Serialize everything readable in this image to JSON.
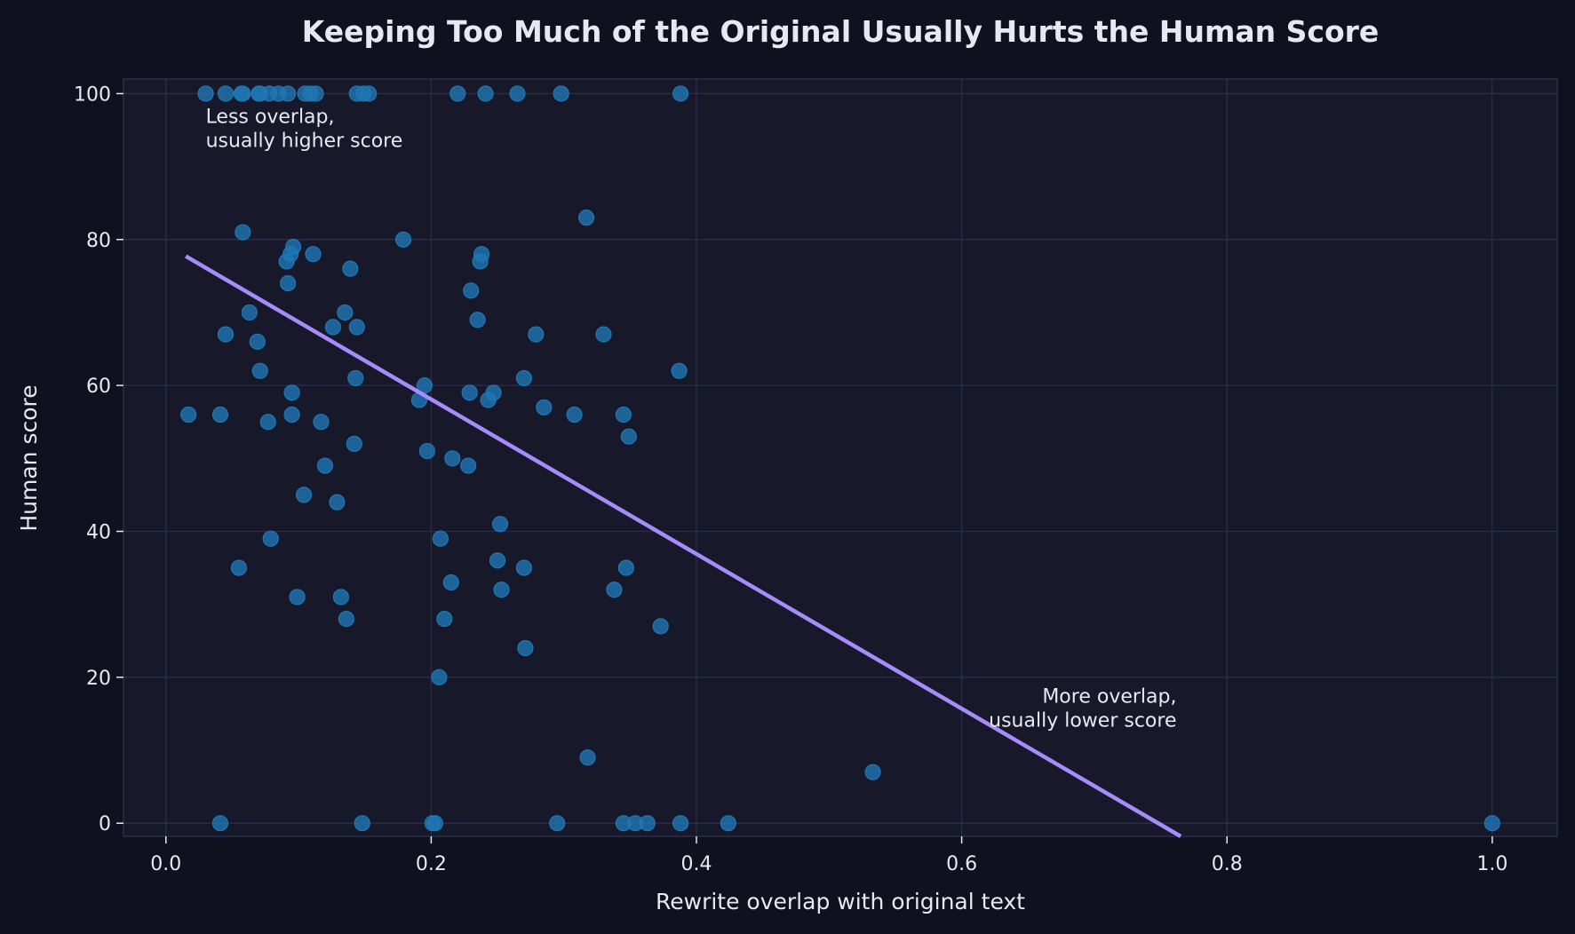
{
  "chart_data": {
    "type": "scatter",
    "title": "Keeping Too Much of the Original Usually Hurts the Human Score",
    "xlabel": "Rewrite overlap with original text",
    "ylabel": "Human score",
    "xlim": [
      -0.032,
      1.049
    ],
    "ylim": [
      -1.8,
      102
    ],
    "xticks": [
      "0.0",
      "0.2",
      "0.4",
      "0.6",
      "0.8",
      "1.0"
    ],
    "yticks": [
      "0",
      "20",
      "40",
      "60",
      "80",
      "100"
    ],
    "grid": true,
    "colors": {
      "background": "#0f111f",
      "plot_background": "#171829",
      "grid": "#2c2d4a",
      "points": "#1f77b4",
      "trend": "#a78bfa",
      "text": "#e8e8f0"
    },
    "annotations": [
      {
        "lines": [
          "Less overlap,",
          "usually higher score"
        ],
        "x": 0.03,
        "y": 96,
        "align": "left"
      },
      {
        "lines": [
          "More overlap,",
          "usually lower score"
        ],
        "x": 0.762,
        "y": 16.5,
        "align": "right"
      }
    ],
    "series": [
      {
        "points": [
          [
            0.03,
            100
          ],
          [
            0.045,
            100
          ],
          [
            0.057,
            100
          ],
          [
            0.058,
            100
          ],
          [
            0.07,
            100
          ],
          [
            0.071,
            100
          ],
          [
            0.078,
            100
          ],
          [
            0.085,
            100
          ],
          [
            0.092,
            100
          ],
          [
            0.105,
            100
          ],
          [
            0.109,
            100
          ],
          [
            0.113,
            100
          ],
          [
            0.144,
            100
          ],
          [
            0.149,
            100
          ],
          [
            0.153,
            100
          ],
          [
            0.22,
            100
          ],
          [
            0.241,
            100
          ],
          [
            0.265,
            100
          ],
          [
            0.298,
            100
          ],
          [
            0.388,
            100
          ],
          [
            0.058,
            81
          ],
          [
            0.063,
            70
          ],
          [
            0.045,
            67
          ],
          [
            0.069,
            66
          ],
          [
            0.071,
            62
          ],
          [
            0.017,
            56
          ],
          [
            0.041,
            56
          ],
          [
            0.077,
            55
          ],
          [
            0.095,
            59
          ],
          [
            0.095,
            56
          ],
          [
            0.096,
            79
          ],
          [
            0.094,
            78
          ],
          [
            0.091,
            77
          ],
          [
            0.092,
            74
          ],
          [
            0.111,
            78
          ],
          [
            0.139,
            76
          ],
          [
            0.135,
            70
          ],
          [
            0.126,
            68
          ],
          [
            0.144,
            68
          ],
          [
            0.143,
            61
          ],
          [
            0.117,
            55
          ],
          [
            0.142,
            52
          ],
          [
            0.12,
            49
          ],
          [
            0.104,
            45
          ],
          [
            0.129,
            44
          ],
          [
            0.079,
            39
          ],
          [
            0.055,
            35
          ],
          [
            0.099,
            31
          ],
          [
            0.132,
            31
          ],
          [
            0.136,
            28
          ],
          [
            0.179,
            80
          ],
          [
            0.195,
            60
          ],
          [
            0.191,
            58
          ],
          [
            0.197,
            51
          ],
          [
            0.216,
            50
          ],
          [
            0.228,
            49
          ],
          [
            0.229,
            59
          ],
          [
            0.23,
            73
          ],
          [
            0.235,
            69
          ],
          [
            0.238,
            78
          ],
          [
            0.237,
            77
          ],
          [
            0.243,
            58
          ],
          [
            0.247,
            59
          ],
          [
            0.252,
            41
          ],
          [
            0.25,
            36
          ],
          [
            0.253,
            32
          ],
          [
            0.207,
            39
          ],
          [
            0.215,
            33
          ],
          [
            0.21,
            28
          ],
          [
            0.206,
            20
          ],
          [
            0.27,
            61
          ],
          [
            0.279,
            67
          ],
          [
            0.285,
            57
          ],
          [
            0.27,
            35
          ],
          [
            0.271,
            24
          ],
          [
            0.317,
            83
          ],
          [
            0.308,
            56
          ],
          [
            0.33,
            67
          ],
          [
            0.345,
            56
          ],
          [
            0.349,
            53
          ],
          [
            0.338,
            32
          ],
          [
            0.347,
            35
          ],
          [
            0.373,
            27
          ],
          [
            0.318,
            9
          ],
          [
            0.387,
            62
          ],
          [
            0.533,
            7
          ],
          [
            0.041,
            0
          ],
          [
            0.148,
            0
          ],
          [
            0.201,
            0
          ],
          [
            0.203,
            0
          ],
          [
            0.295,
            0
          ],
          [
            0.345,
            0
          ],
          [
            0.354,
            0
          ],
          [
            0.363,
            0
          ],
          [
            0.388,
            0
          ],
          [
            0.424,
            0
          ],
          [
            1.0,
            0
          ]
        ]
      }
    ],
    "trendline": {
      "type": "linear"
    }
  }
}
